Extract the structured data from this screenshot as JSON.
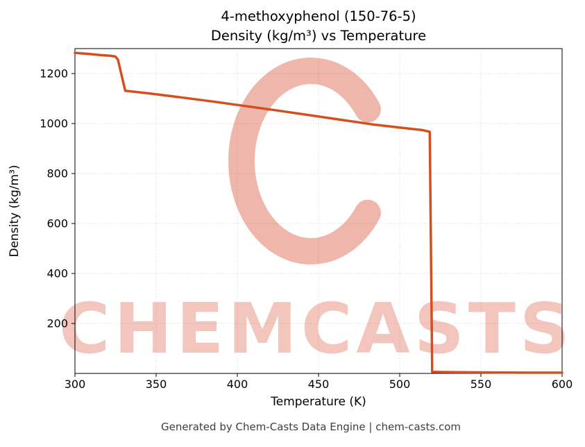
{
  "header": {
    "title_line1": "4-methoxyphenol (150-76-5)",
    "title_line2": "Density (kg/m³) vs Temperature"
  },
  "footer": {
    "text": "Generated by Chem-Casts Data Engine | chem-casts.com"
  },
  "watermark": {
    "logo_letter": "C",
    "text": "CHEMCASTS",
    "color_logo": "rgba(213, 63, 38, 0.38)",
    "color_text": "rgba(213, 63, 38, 0.30)"
  },
  "chart_data": {
    "type": "line",
    "title": "4-methoxyphenol (150-76-5) — Density (kg/m³) vs Temperature",
    "xlabel": "Temperature (K)",
    "ylabel": "Density (kg/m³)",
    "xlim": [
      300,
      600
    ],
    "ylim": [
      0,
      1300
    ],
    "xticks": [
      300,
      350,
      400,
      450,
      500,
      550,
      600
    ],
    "yticks": [
      200,
      400,
      600,
      800,
      1000,
      1200
    ],
    "grid": true,
    "legend": false,
    "line_color": "#d34f1e",
    "line_width": 3.5,
    "series": [
      {
        "name": "Density (kg/m³)",
        "x": [
          300,
          308,
          316,
          322,
          325,
          326.5,
          331,
          345,
          365,
          385,
          405,
          425,
          445,
          465,
          485,
          500,
          508,
          514,
          518.5,
          520,
          535,
          555,
          575,
          600
        ],
        "y": [
          1283,
          1279,
          1274,
          1271,
          1268,
          1255,
          1131,
          1121,
          1105,
          1088,
          1070,
          1052,
          1033,
          1014,
          995,
          984,
          978,
          974,
          967,
          6,
          5,
          4,
          3,
          3
        ]
      }
    ]
  }
}
